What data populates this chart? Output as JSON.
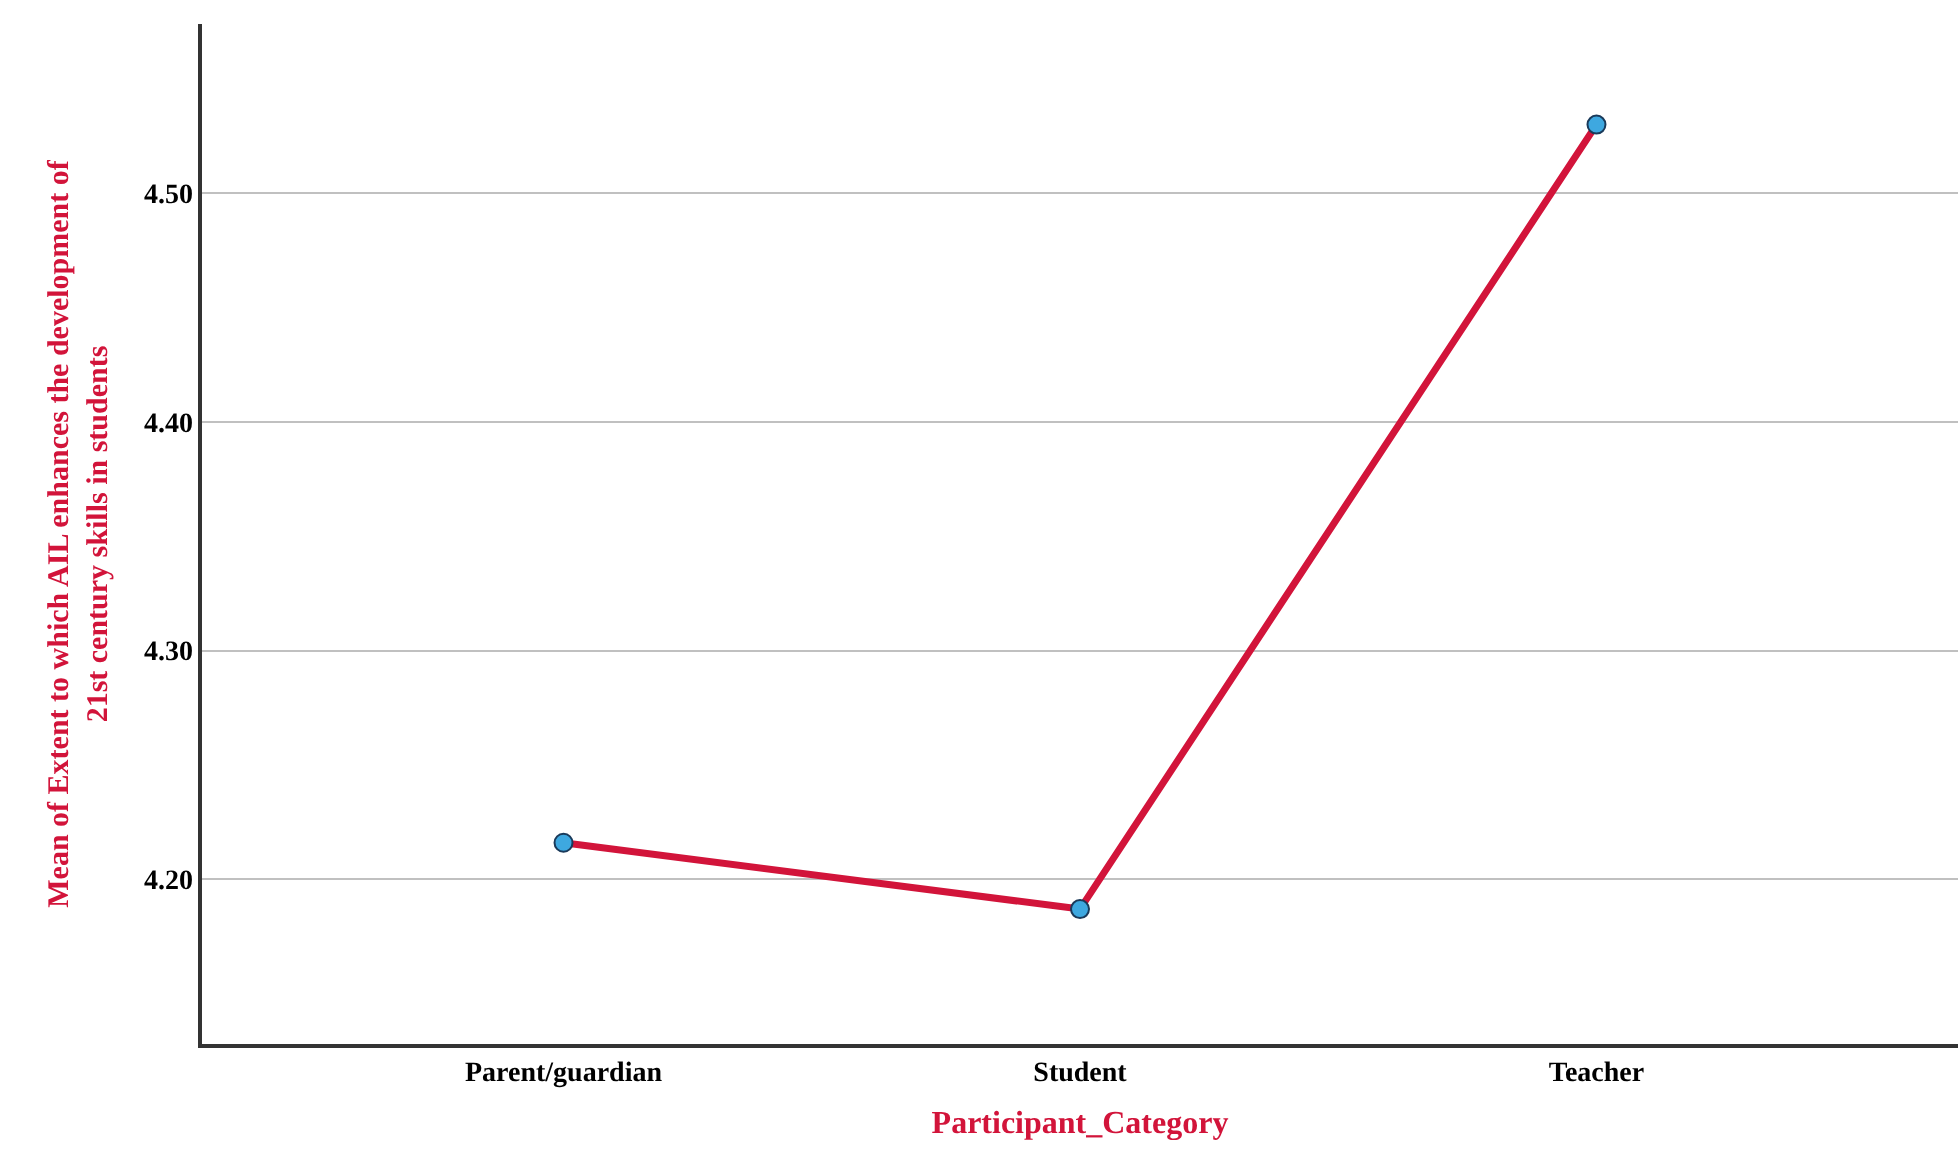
{
  "chart_data": {
    "type": "line",
    "categories": [
      "Parent/guardian",
      "Student",
      "Teacher"
    ],
    "series": [
      {
        "color": "#d2143a",
        "values": [
          4.216,
          4.187,
          4.53
        ]
      }
    ],
    "xlabel": "Participant_Category",
    "ylabel": "Mean of Extent to which AIL enhances the development of\n21st century skills in students",
    "ylim": [
      4.128,
      4.574
    ],
    "yticks": [
      {
        "value": 4.2,
        "label": "4.20"
      },
      {
        "value": 4.3,
        "label": "4.30"
      },
      {
        "value": 4.4,
        "label": "4.40"
      },
      {
        "value": 4.5,
        "label": "4.50"
      }
    ],
    "grid": "y",
    "marker": "circle",
    "line_style": "solid",
    "legend": false
  }
}
